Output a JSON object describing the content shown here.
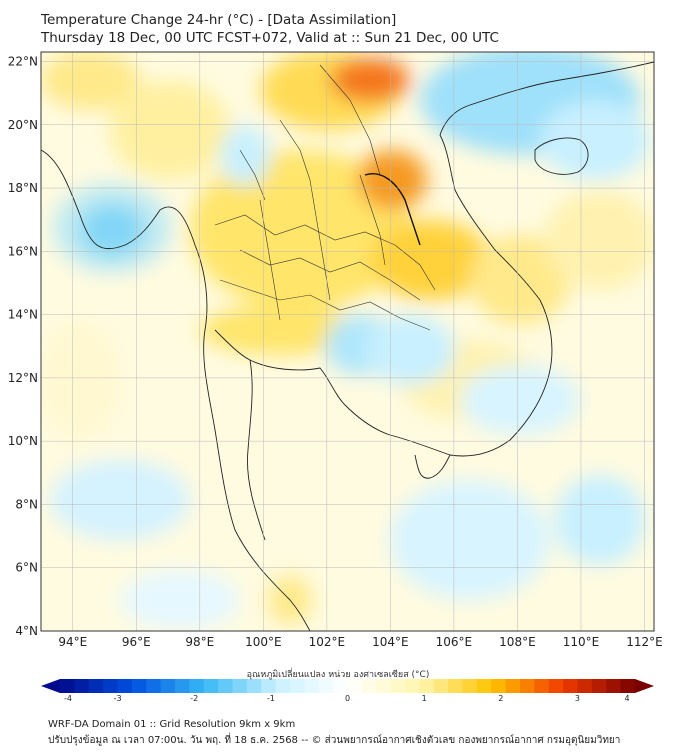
{
  "title": {
    "line1": "Temperature Change 24-hr (°C) - [Data Assimilation]",
    "line2": "Thursday 18 Dec, 00 UTC FCST+072, Valid at :: Sun 21 Dec, 00 UTC"
  },
  "map": {
    "lat_ticks": [
      "22°N",
      "20°N",
      "18°N",
      "16°N",
      "14°N",
      "12°N",
      "10°N",
      "8°N",
      "6°N",
      "4°N"
    ],
    "lon_ticks": [
      "94°E",
      "96°E",
      "98°E",
      "100°E",
      "102°E",
      "104°E",
      "106°E",
      "108°E",
      "110°E",
      "112°E"
    ],
    "lat_range": [
      4,
      22.3
    ],
    "lon_range": [
      93,
      112.3
    ]
  },
  "colorbar": {
    "title": "อุณหภูมิเปลี่ยนแปลง หน่วย องศาเซลเซียส (°C)",
    "ticks": [
      "-4",
      "-3",
      "-2",
      "-1",
      "0",
      "1",
      "2",
      "3",
      "4"
    ],
    "range": [
      -4,
      4
    ],
    "colors": [
      "#000a8c",
      "#0050e0",
      "#36b8f5",
      "#c8f0ff",
      "#ffffff",
      "#fff6b0",
      "#ffc400",
      "#f03a00",
      "#7a0000"
    ]
  },
  "footer": {
    "line1": "WRF-DA Domain 01 :: Grid Resolution 9km x 9km",
    "line2": "ปรับปรุงข้อมูล ณ เวลา 07:00น. วัน พฤ. ที่ 18 ธ.ค. 2568 -- © ส่วนพยากรณ์อากาศเชิงตัวเลข กองพยากรณ์อากาศ กรมอุตุนิยมวิทยา"
  }
}
